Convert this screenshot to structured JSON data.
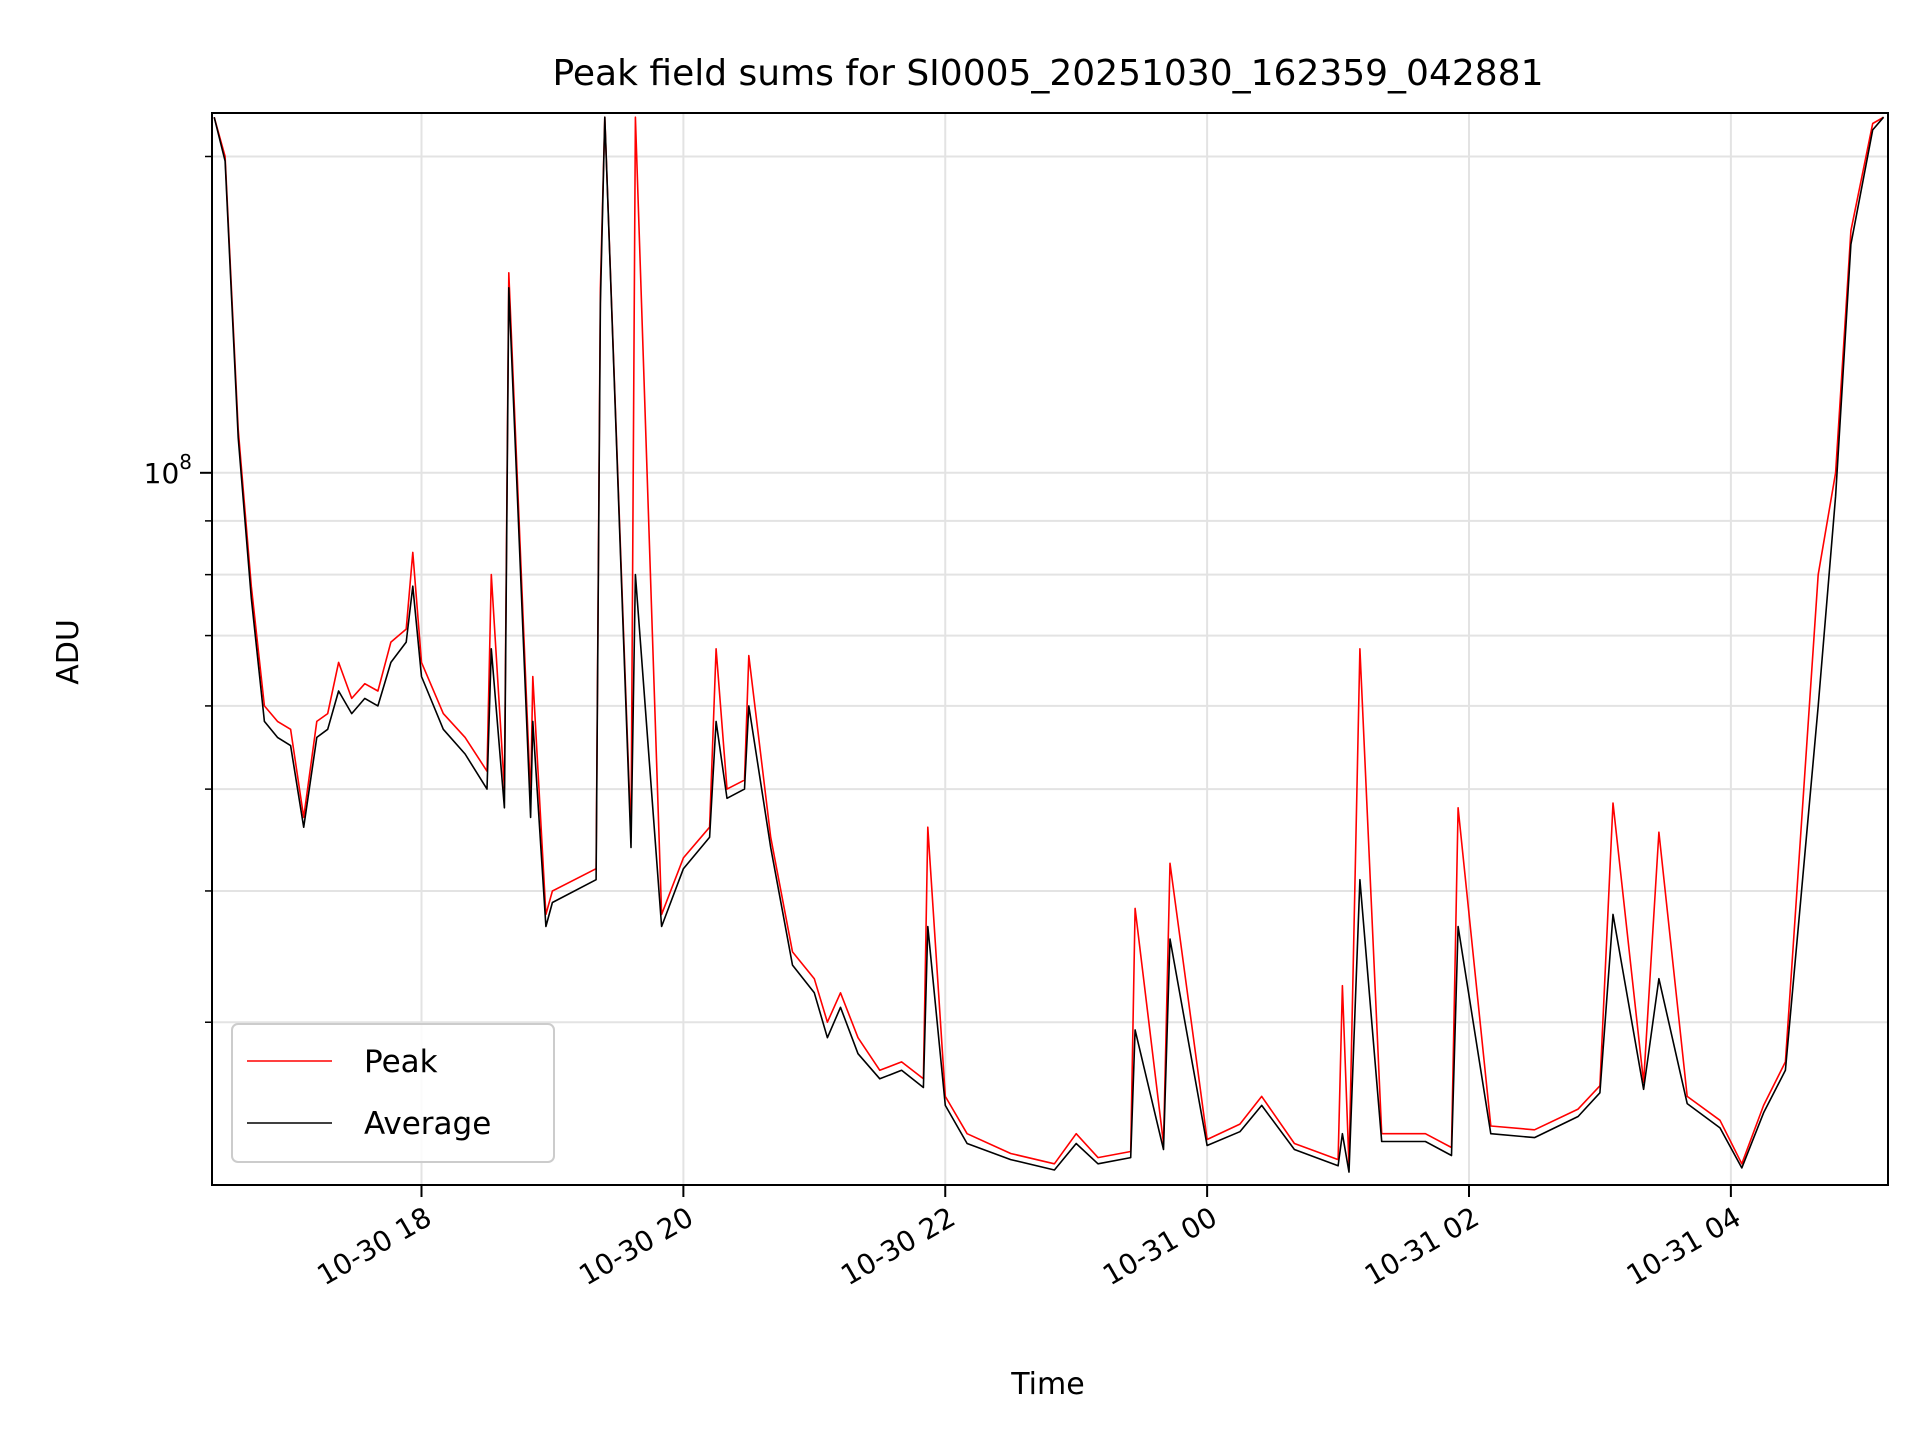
{
  "chart_data": {
    "type": "line",
    "title": "Peak field sums for SI0005_20251030_162359_042881",
    "xlabel": "Time",
    "ylabel": "ADU",
    "yscale": "log",
    "ylim": [
      21000000,
      220000000
    ],
    "xlim": [
      "2025-10-30 16:24",
      "2025-10-31 05:12"
    ],
    "x_ticks": [
      {
        "value": "2025-10-30 18:00",
        "label": "10-30 18"
      },
      {
        "value": "2025-10-30 20:00",
        "label": "10-30 20"
      },
      {
        "value": "2025-10-30 22:00",
        "label": "10-30 22"
      },
      {
        "value": "2025-10-31 00:00",
        "label": "10-31 00"
      },
      {
        "value": "2025-10-31 02:00",
        "label": "10-31 02"
      },
      {
        "value": "2025-10-31 04:00",
        "label": "10-31 04"
      }
    ],
    "y_major_ticks": [
      {
        "value": 100000000,
        "label_base": "10",
        "label_exp": "8"
      }
    ],
    "y_minor_ticks": [
      30000000,
      40000000,
      50000000,
      60000000,
      70000000,
      80000000,
      90000000,
      200000000
    ],
    "grid": true,
    "legend_position": "lower-left",
    "series": [
      {
        "name": "Peak",
        "color": "#ff0000",
        "x": [
          "2025-10-30 16:25",
          "2025-10-30 16:30",
          "2025-10-30 16:36",
          "2025-10-30 16:42",
          "2025-10-30 16:48",
          "2025-10-30 16:54",
          "2025-10-30 17:00",
          "2025-10-30 17:06",
          "2025-10-30 17:12",
          "2025-10-30 17:17",
          "2025-10-30 17:22",
          "2025-10-30 17:28",
          "2025-10-30 17:34",
          "2025-10-30 17:40",
          "2025-10-30 17:46",
          "2025-10-30 17:53",
          "2025-10-30 17:56",
          "2025-10-30 18:00",
          "2025-10-30 18:10",
          "2025-10-30 18:20",
          "2025-10-30 18:30",
          "2025-10-30 18:32",
          "2025-10-30 18:38",
          "2025-10-30 18:40",
          "2025-10-30 18:50",
          "2025-10-30 18:51",
          "2025-10-30 18:57",
          "2025-10-30 19:00",
          "2025-10-30 19:20",
          "2025-10-30 19:22",
          "2025-10-30 19:24",
          "2025-10-30 19:36",
          "2025-10-30 19:38",
          "2025-10-30 19:50",
          "2025-10-30 20:00",
          "2025-10-30 20:12",
          "2025-10-30 20:15",
          "2025-10-30 20:20",
          "2025-10-30 20:28",
          "2025-10-30 20:30",
          "2025-10-30 20:40",
          "2025-10-30 20:50",
          "2025-10-30 21:00",
          "2025-10-30 21:06",
          "2025-10-30 21:12",
          "2025-10-30 21:20",
          "2025-10-30 21:30",
          "2025-10-30 21:40",
          "2025-10-30 21:50",
          "2025-10-30 21:52",
          "2025-10-30 22:00",
          "2025-10-30 22:10",
          "2025-10-30 22:30",
          "2025-10-30 22:50",
          "2025-10-30 23:00",
          "2025-10-30 23:10",
          "2025-10-30 23:25",
          "2025-10-30 23:27",
          "2025-10-30 23:40",
          "2025-10-30 23:43",
          "2025-10-31 00:00",
          "2025-10-31 00:15",
          "2025-10-31 00:25",
          "2025-10-31 00:40",
          "2025-10-31 00:50",
          "2025-10-31 01:00",
          "2025-10-31 01:02",
          "2025-10-31 01:05",
          "2025-10-31 01:10",
          "2025-10-31 01:20",
          "2025-10-31 01:40",
          "2025-10-31 01:52",
          "2025-10-31 01:55",
          "2025-10-31 02:10",
          "2025-10-31 02:30",
          "2025-10-31 02:50",
          "2025-10-31 03:00",
          "2025-10-31 03:06",
          "2025-10-31 03:20",
          "2025-10-31 03:27",
          "2025-10-31 03:40",
          "2025-10-31 03:55",
          "2025-10-31 04:05",
          "2025-10-31 04:15",
          "2025-10-31 04:25",
          "2025-10-31 04:40",
          "2025-10-31 04:48",
          "2025-10-31 04:55",
          "2025-10-31 05:05",
          "2025-10-31 05:10"
        ],
        "y": [
          218000000,
          200000000,
          110000000,
          78000000,
          60000000,
          58000000,
          57000000,
          47000000,
          58000000,
          59000000,
          66000000,
          61000000,
          63000000,
          62000000,
          69000000,
          71000000,
          84000000,
          66000000,
          59000000,
          56000000,
          52000000,
          80000000,
          50000000,
          155000000,
          49000000,
          64000000,
          38000000,
          40000000,
          42000000,
          150000000,
          218000000,
          45000000,
          218000000,
          38000000,
          43000000,
          46000000,
          68000000,
          50000000,
          51000000,
          67000000,
          45000000,
          35000000,
          33000000,
          30000000,
          32000000,
          29000000,
          27000000,
          27500000,
          26500000,
          46000000,
          25500000,
          23500000,
          22500000,
          22000000,
          23500000,
          22300000,
          22600000,
          38500000,
          23000000,
          42500000,
          23200000,
          24000000,
          25500000,
          23000000,
          22600000,
          22200000,
          32500000,
          21900000,
          68000000,
          23500000,
          23500000,
          22800000,
          48000000,
          23900000,
          23700000,
          24800000,
          26100000,
          48500000,
          26300000,
          45500000,
          25500000,
          24200000,
          22000000,
          25000000,
          27500000,
          80000000,
          100000000,
          170000000,
          215000000,
          218000000
        ]
      },
      {
        "name": "Average",
        "color": "#000000",
        "x": [
          "2025-10-30 16:25",
          "2025-10-30 16:30",
          "2025-10-30 16:36",
          "2025-10-30 16:42",
          "2025-10-30 16:48",
          "2025-10-30 16:54",
          "2025-10-30 17:00",
          "2025-10-30 17:06",
          "2025-10-30 17:12",
          "2025-10-30 17:17",
          "2025-10-30 17:22",
          "2025-10-30 17:28",
          "2025-10-30 17:34",
          "2025-10-30 17:40",
          "2025-10-30 17:46",
          "2025-10-30 17:53",
          "2025-10-30 17:56",
          "2025-10-30 18:00",
          "2025-10-30 18:10",
          "2025-10-30 18:20",
          "2025-10-30 18:30",
          "2025-10-30 18:32",
          "2025-10-30 18:38",
          "2025-10-30 18:40",
          "2025-10-30 18:50",
          "2025-10-30 18:51",
          "2025-10-30 18:57",
          "2025-10-30 19:00",
          "2025-10-30 19:20",
          "2025-10-30 19:22",
          "2025-10-30 19:24",
          "2025-10-30 19:36",
          "2025-10-30 19:38",
          "2025-10-30 19:50",
          "2025-10-30 20:00",
          "2025-10-30 20:12",
          "2025-10-30 20:15",
          "2025-10-30 20:20",
          "2025-10-30 20:28",
          "2025-10-30 20:30",
          "2025-10-30 20:40",
          "2025-10-30 20:50",
          "2025-10-30 21:00",
          "2025-10-30 21:06",
          "2025-10-30 21:12",
          "2025-10-30 21:20",
          "2025-10-30 21:30",
          "2025-10-30 21:40",
          "2025-10-30 21:50",
          "2025-10-30 21:52",
          "2025-10-30 22:00",
          "2025-10-30 22:10",
          "2025-10-30 22:30",
          "2025-10-30 22:50",
          "2025-10-30 23:00",
          "2025-10-30 23:10",
          "2025-10-30 23:25",
          "2025-10-30 23:27",
          "2025-10-30 23:40",
          "2025-10-30 23:43",
          "2025-10-31 00:00",
          "2025-10-31 00:15",
          "2025-10-31 00:25",
          "2025-10-31 00:40",
          "2025-10-31 00:50",
          "2025-10-31 01:00",
          "2025-10-31 01:02",
          "2025-10-31 01:05",
          "2025-10-31 01:10",
          "2025-10-31 01:20",
          "2025-10-31 01:40",
          "2025-10-31 01:52",
          "2025-10-31 01:55",
          "2025-10-31 02:10",
          "2025-10-31 02:30",
          "2025-10-31 02:50",
          "2025-10-31 03:00",
          "2025-10-31 03:06",
          "2025-10-31 03:20",
          "2025-10-31 03:27",
          "2025-10-31 03:40",
          "2025-10-31 03:55",
          "2025-10-31 04:05",
          "2025-10-31 04:15",
          "2025-10-31 04:25",
          "2025-10-31 04:40",
          "2025-10-31 04:48",
          "2025-10-31 04:55",
          "2025-10-31 05:05",
          "2025-10-31 05:10"
        ],
        "y": [
          218000000,
          198000000,
          108000000,
          76000000,
          58000000,
          56000000,
          55000000,
          46000000,
          56000000,
          57000000,
          62000000,
          59000000,
          61000000,
          60000000,
          66000000,
          69000000,
          78000000,
          64000000,
          57000000,
          54000000,
          50000000,
          68000000,
          48000000,
          150000000,
          47000000,
          58000000,
          37000000,
          39000000,
          41000000,
          145000000,
          218000000,
          44000000,
          80000000,
          37000000,
          42000000,
          45000000,
          58000000,
          49000000,
          50000000,
          60000000,
          44000000,
          34000000,
          32000000,
          29000000,
          31000000,
          28000000,
          26500000,
          27000000,
          26000000,
          37000000,
          25000000,
          23000000,
          22200000,
          21700000,
          23000000,
          22000000,
          22300000,
          29500000,
          22700000,
          36000000,
          22900000,
          23600000,
          25000000,
          22700000,
          22300000,
          21900000,
          23500000,
          21600000,
          41000000,
          23100000,
          23100000,
          22400000,
          37000000,
          23500000,
          23300000,
          24400000,
          25700000,
          38000000,
          25900000,
          33000000,
          25100000,
          23800000,
          21800000,
          24600000,
          27000000,
          60000000,
          95000000,
          165000000,
          212000000,
          218000000
        ]
      }
    ]
  }
}
